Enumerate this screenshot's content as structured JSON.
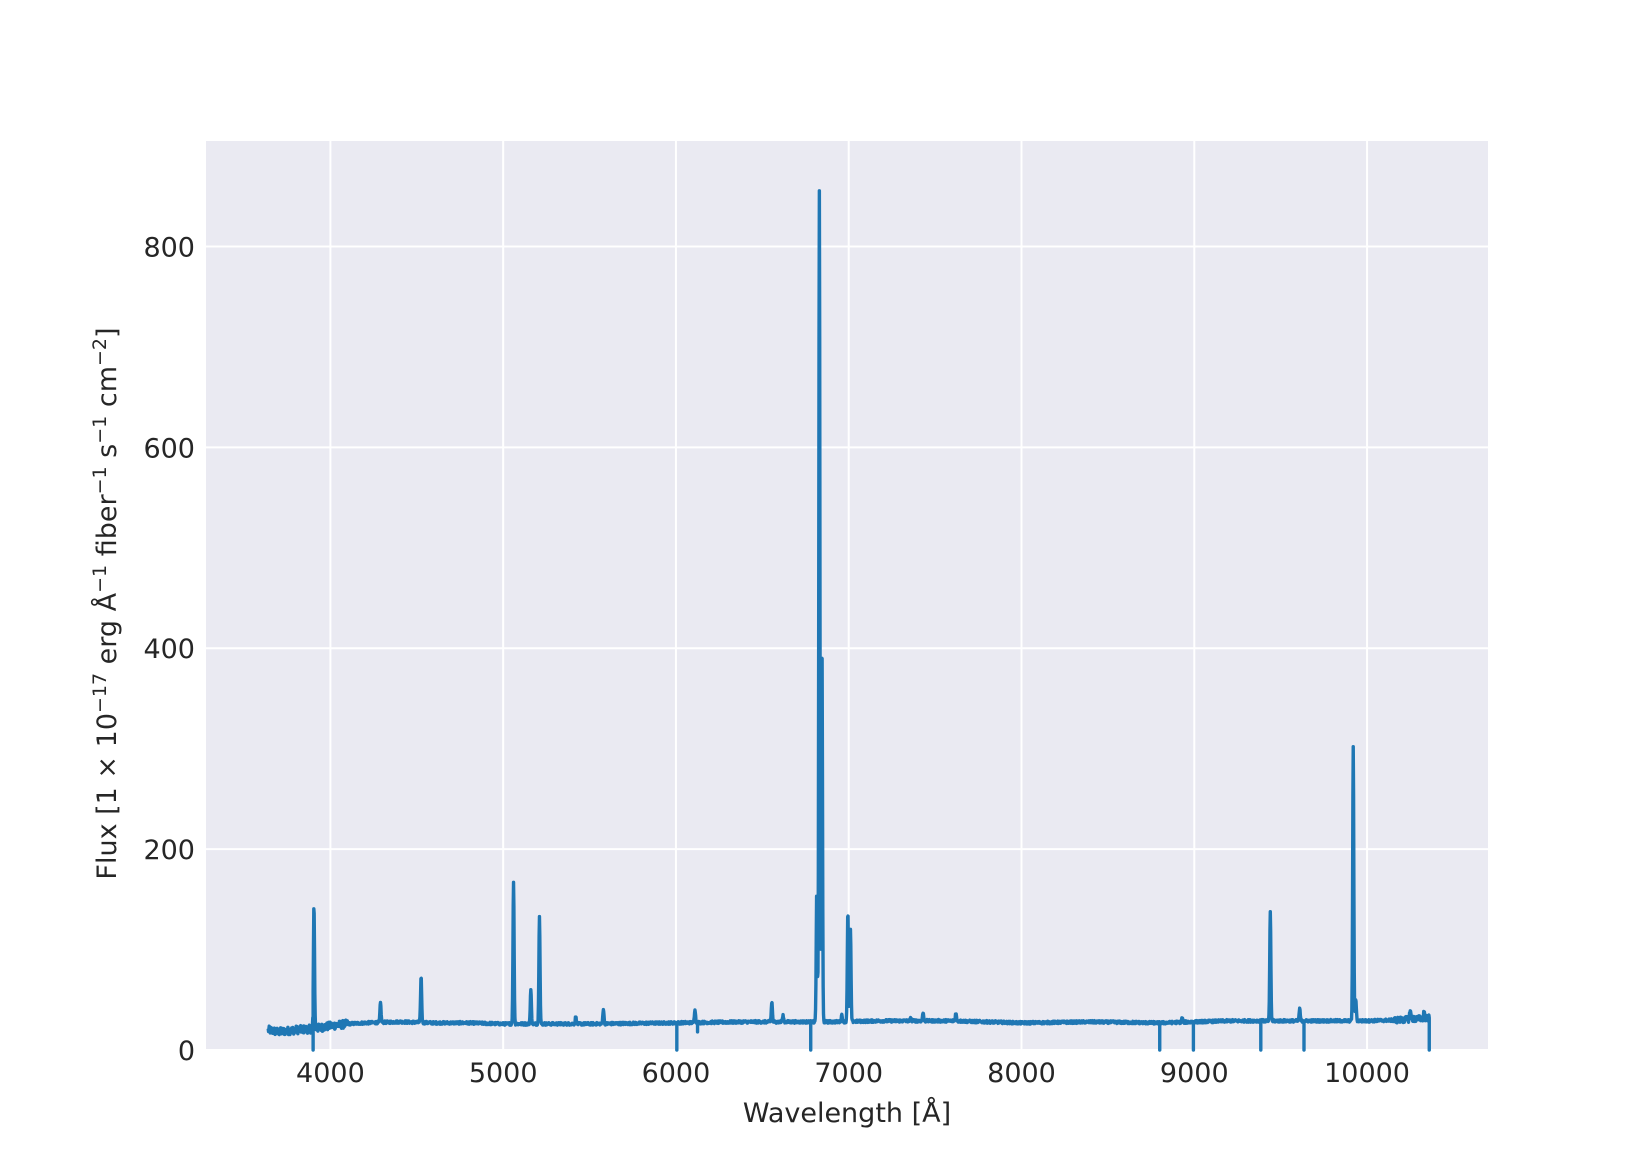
{
  "chart_data": {
    "type": "line",
    "title": "",
    "xlabel": "Wavelength [Å]",
    "ylabel": {
      "parts": [
        {
          "text": "Flux [1 × 10",
          "sup": false
        },
        {
          "text": "−17",
          "sup": true
        },
        {
          "text": " erg Å",
          "sup": false
        },
        {
          "text": "−1",
          "sup": true
        },
        {
          "text": " fiber",
          "sup": false
        },
        {
          "text": "−1",
          "sup": true
        },
        {
          "text": " s",
          "sup": false
        },
        {
          "text": "−1",
          "sup": true
        },
        {
          "text": " cm",
          "sup": false
        },
        {
          "text": "−2",
          "sup": true
        },
        {
          "text": "]",
          "sup": false
        }
      ]
    },
    "xlim": [
      3280,
      10700
    ],
    "ylim": [
      0,
      905
    ],
    "xticks": [
      4000,
      5000,
      6000,
      7000,
      8000,
      9000,
      10000
    ],
    "yticks": [
      0,
      200,
      400,
      600,
      800
    ],
    "grid": true,
    "style": "seaborn-darkgrid",
    "colors": {
      "axes_background": "#EAEAF2",
      "grid": "#FFFFFF",
      "line": "#1F77B4"
    },
    "continuum": [
      [
        3640,
        20
      ],
      [
        3700,
        18
      ],
      [
        3800,
        20
      ],
      [
        3900,
        21
      ],
      [
        4000,
        24
      ],
      [
        4100,
        26
      ],
      [
        4200,
        27
      ],
      [
        4400,
        28
      ],
      [
        4600,
        27
      ],
      [
        4800,
        27
      ],
      [
        5000,
        26
      ],
      [
        5500,
        26
      ],
      [
        6000,
        27
      ],
      [
        6400,
        28
      ],
      [
        6700,
        28
      ],
      [
        6900,
        28
      ],
      [
        7200,
        29
      ],
      [
        7600,
        29
      ],
      [
        8000,
        27
      ],
      [
        8400,
        28
      ],
      [
        8800,
        27
      ],
      [
        9200,
        29
      ],
      [
        9600,
        29
      ],
      [
        10000,
        29
      ],
      [
        10200,
        30
      ],
      [
        10360,
        32
      ]
    ],
    "emission_lines": [
      {
        "x": 3905,
        "peak": 145
      },
      {
        "x": 4290,
        "peak": 47
      },
      {
        "x": 4525,
        "peak": 73
      },
      {
        "x": 5060,
        "peak": 168
      },
      {
        "x": 5160,
        "peak": 60
      },
      {
        "x": 5210,
        "peak": 134
      },
      {
        "x": 5420,
        "peak": 33
      },
      {
        "x": 5580,
        "peak": 41
      },
      {
        "x": 6110,
        "peak": 41
      },
      {
        "x": 6555,
        "peak": 48
      },
      {
        "x": 6620,
        "peak": 34
      },
      {
        "x": 6815,
        "peak": 158
      },
      {
        "x": 6830,
        "peak": 856
      },
      {
        "x": 6845,
        "peak": 408
      },
      {
        "x": 6960,
        "peak": 35
      },
      {
        "x": 6995,
        "peak": 138
      },
      {
        "x": 7010,
        "peak": 120
      },
      {
        "x": 7360,
        "peak": 32
      },
      {
        "x": 7430,
        "peak": 37
      },
      {
        "x": 7620,
        "peak": 37
      },
      {
        "x": 8930,
        "peak": 32
      },
      {
        "x": 9440,
        "peak": 138
      },
      {
        "x": 9610,
        "peak": 41
      },
      {
        "x": 9920,
        "peak": 301
      },
      {
        "x": 9935,
        "peak": 50
      },
      {
        "x": 10250,
        "peak": 40
      },
      {
        "x": 10330,
        "peak": 38
      }
    ],
    "absorption_drops": [
      {
        "x": 3900,
        "min": 0
      },
      {
        "x": 6005,
        "min": 0
      },
      {
        "x": 6125,
        "min": 18
      },
      {
        "x": 6780,
        "min": 0
      },
      {
        "x": 8800,
        "min": 0
      },
      {
        "x": 8995,
        "min": 0
      },
      {
        "x": 9385,
        "min": 0
      },
      {
        "x": 9635,
        "min": 0
      },
      {
        "x": 10360,
        "min": 0
      }
    ]
  }
}
